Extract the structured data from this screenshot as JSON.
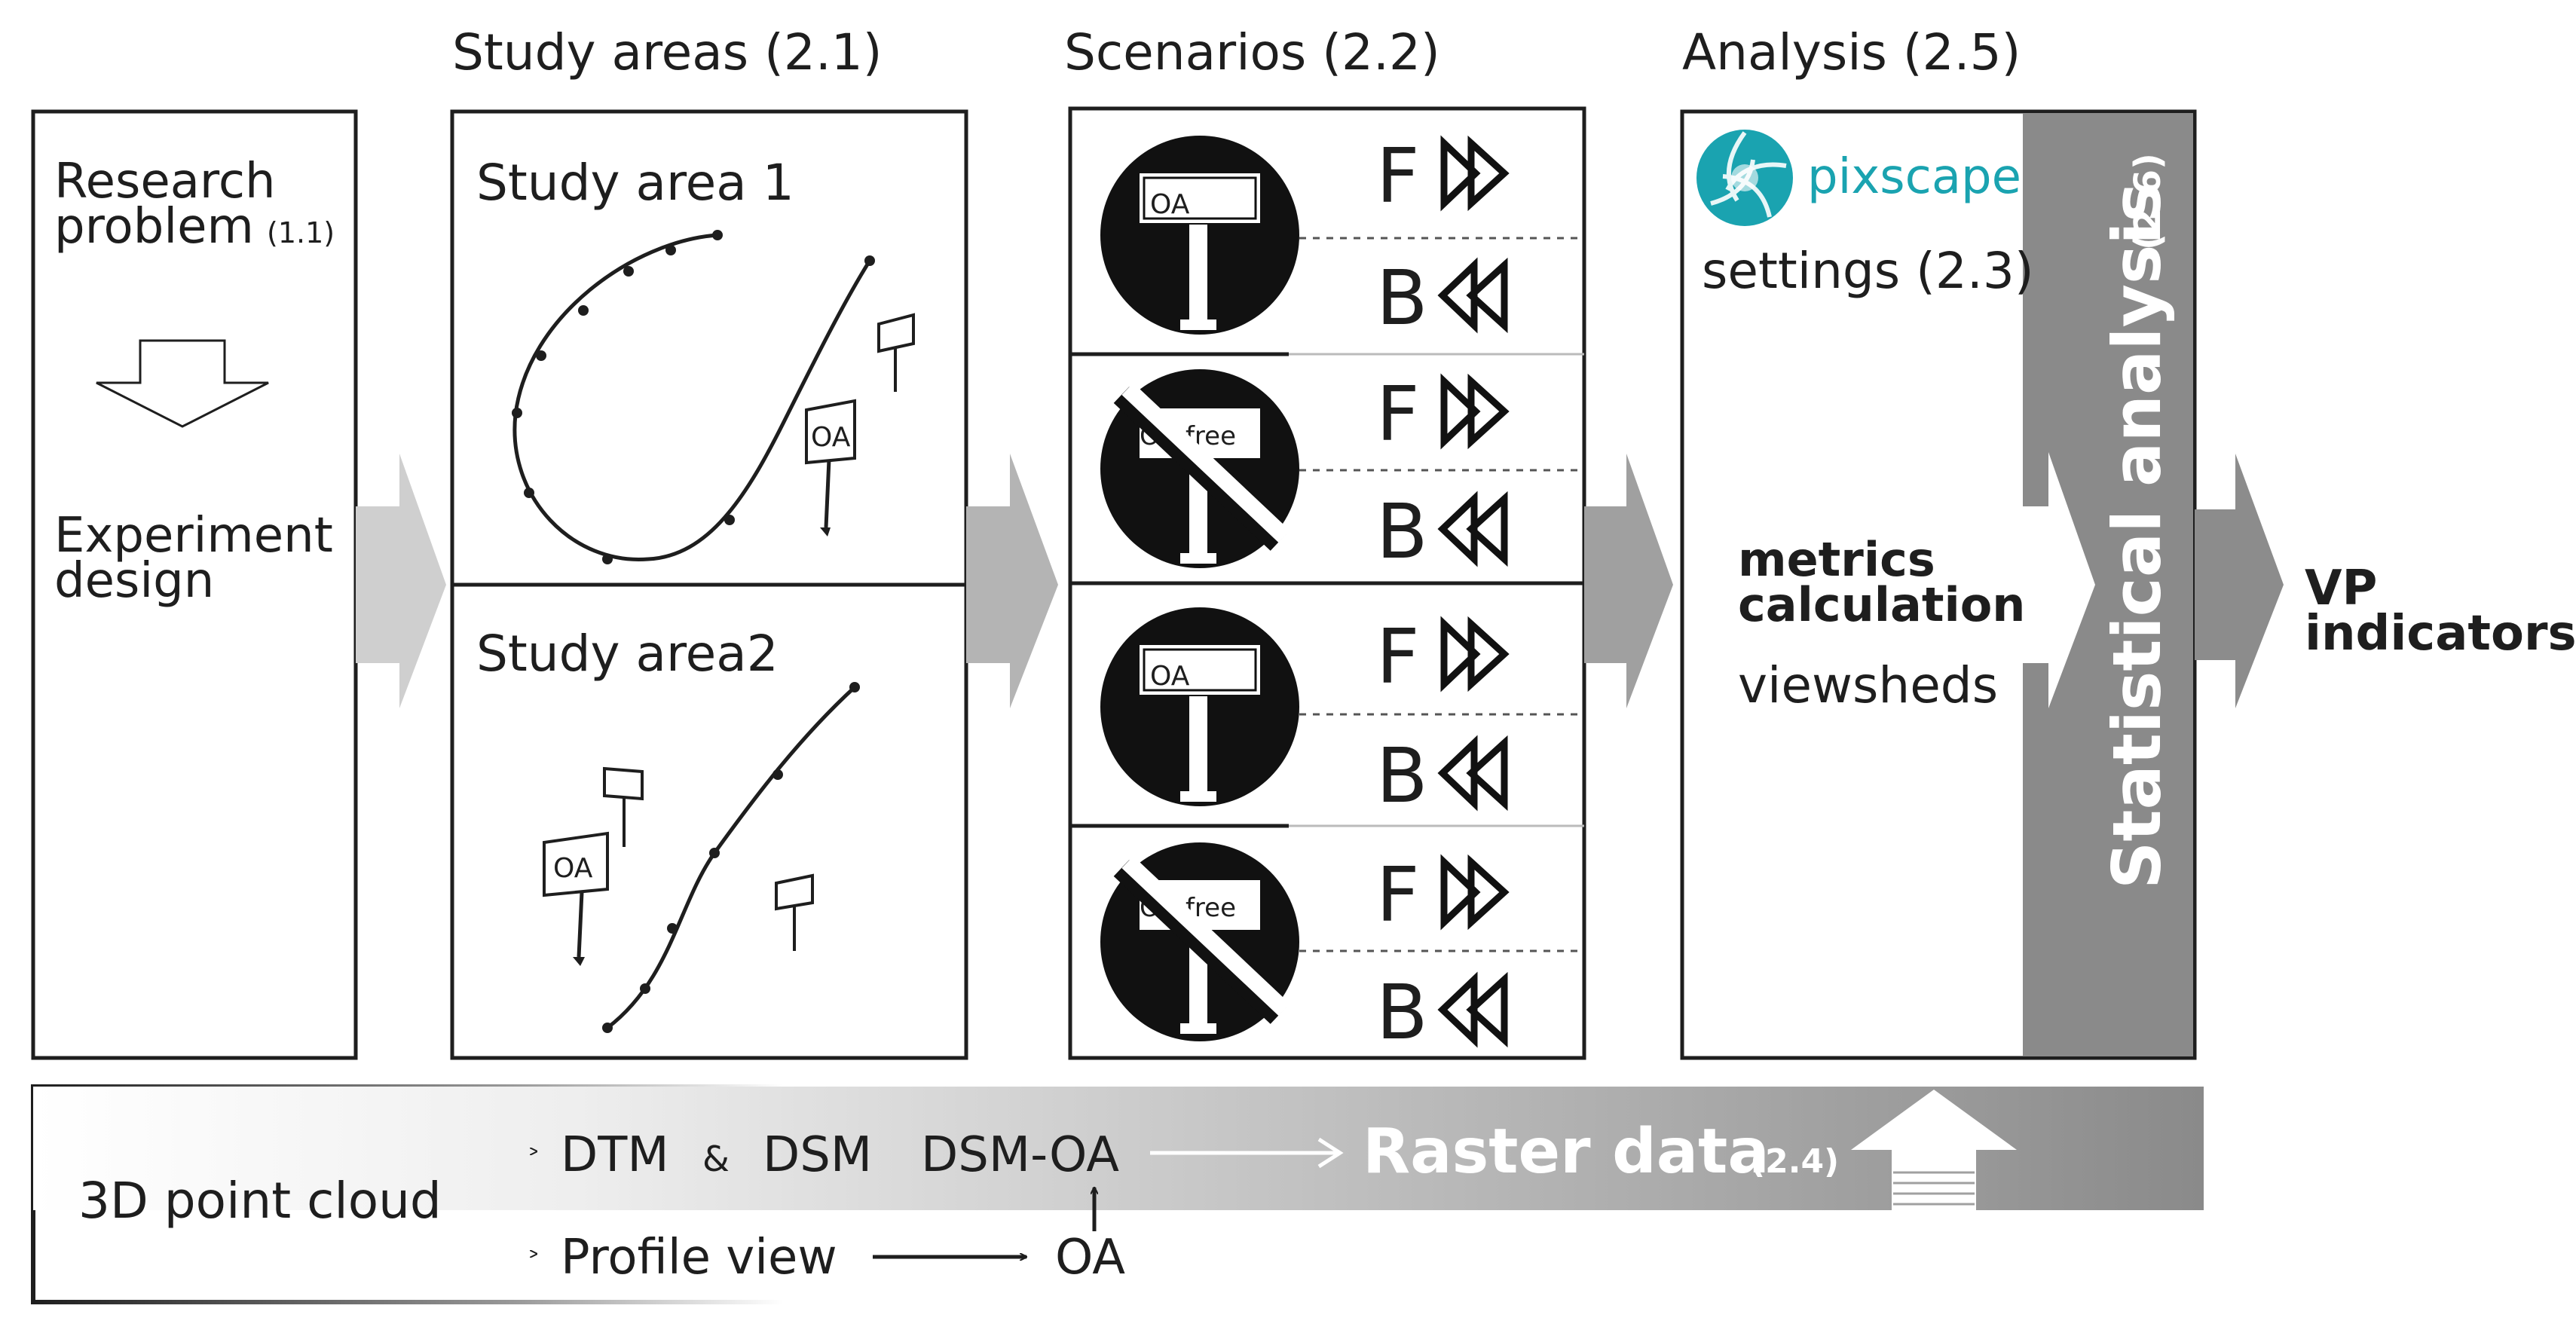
{
  "headers": {
    "study_areas": "Study areas (2.1)",
    "scenarios": "Scenarios (2.2)",
    "analysis": "Analysis (2.5)"
  },
  "research": {
    "problem_line1": "Research",
    "problem_line2": "problem",
    "problem_ref": "(1.1)",
    "design_line1": "Experiment",
    "design_line2": "design"
  },
  "study_areas": {
    "area1_title": "Study area 1",
    "area2_title": "Study area2",
    "sign_label": "OA"
  },
  "scenarios": {
    "sign_oa": "OA",
    "sign_oa_free": "OA-free",
    "forward_label": "F",
    "backward_label": "B",
    "rows": [
      "OA",
      "OA-free",
      "OA",
      "OA-free"
    ]
  },
  "analysis": {
    "logo_text": "pixscape",
    "settings": "settings (2.3)",
    "metrics_line1": "metrics",
    "metrics_line2": "calculation",
    "viewsheds": "viewsheds",
    "stat_title": "Statistical analysis",
    "stat_ref": "(2.6)"
  },
  "output": {
    "line1": "VP",
    "line2": "indicators"
  },
  "bottom": {
    "point_cloud": "3D point cloud",
    "dtm": "DTM",
    "amp": "&",
    "dsm": "DSM",
    "dsm_oa": "DSM-OA",
    "profile_view": "Profile view",
    "oa": "OA",
    "raster_data": "Raster data",
    "raster_ref": "(2.4)"
  },
  "colors": {
    "outline": "#1e1e1e",
    "flow_arrow_light": "#cfcfcf",
    "flow_arrow_mid": "#a9a9a9",
    "flow_arrow_dark": "#8c8c8c",
    "stat_bar": "#8a8a8a",
    "raster_band_end": "#8a8a8a",
    "logo_teal": "#1aa3b0"
  }
}
